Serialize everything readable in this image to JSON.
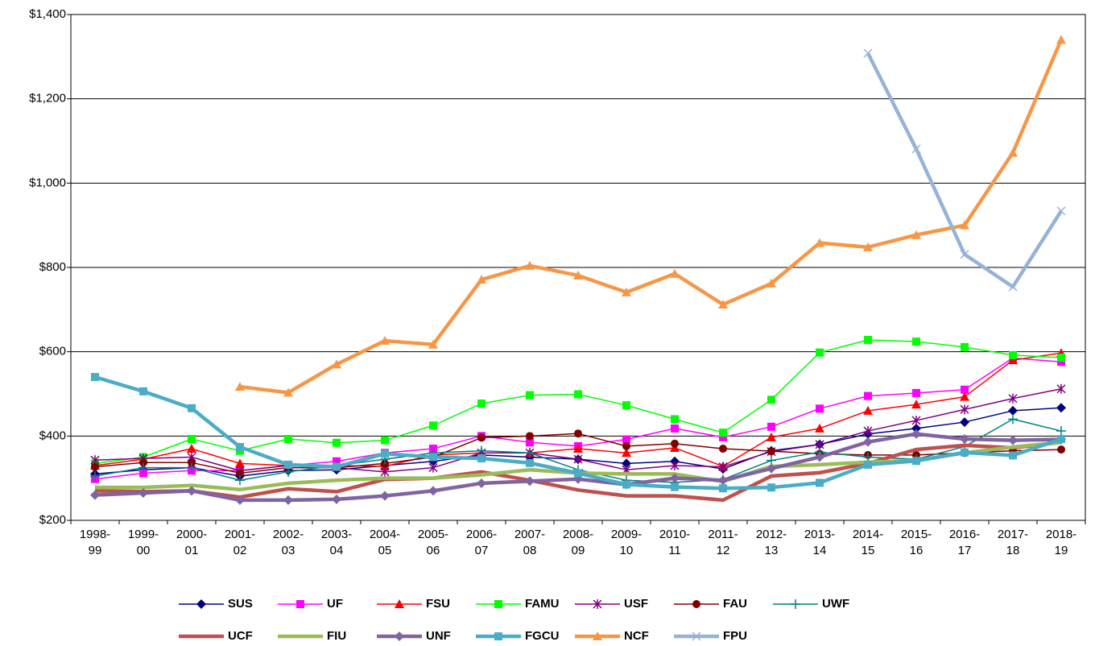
{
  "chart_data": {
    "type": "line",
    "categories": [
      "1998-99",
      "1999-00",
      "2000-01",
      "2001-02",
      "2002-03",
      "2003-04",
      "2004-05",
      "2005-06",
      "2006-07",
      "2007-08",
      "2008-09",
      "2009-10",
      "2010-11",
      "2011-12",
      "2012-13",
      "2013-14",
      "2014-15",
      "2015-16",
      "2016-17",
      "2017-18",
      "2018-19"
    ],
    "ylim": [
      200,
      1400
    ],
    "yticks": [
      {
        "value": 200,
        "label": "$200"
      },
      {
        "value": 400,
        "label": "$400"
      },
      {
        "value": 600,
        "label": "$600"
      },
      {
        "value": 800,
        "label": "$800"
      },
      {
        "value": 1000,
        "label": "$1,000"
      },
      {
        "value": 1200,
        "label": "$1,200"
      },
      {
        "value": 1400,
        "label": "$1,400"
      }
    ],
    "grid": true,
    "legend": "bottom",
    "series": [
      {
        "name": "SUS",
        "color": "#000080",
        "marker": "diamond",
        "width": 1.5,
        "values": [
          310,
          320,
          325,
          305,
          318,
          320,
          330,
          340,
          355,
          350,
          345,
          335,
          340,
          322,
          365,
          380,
          405,
          418,
          433,
          460,
          467
        ]
      },
      {
        "name": "UF",
        "color": "#ff00ff",
        "marker": "square",
        "width": 1.5,
        "values": [
          298,
          312,
          318,
          318,
          330,
          340,
          360,
          370,
          400,
          385,
          376,
          392,
          418,
          397,
          422,
          465,
          495,
          502,
          510,
          585,
          576
        ]
      },
      {
        "name": "FSU",
        "color": "#ff0000",
        "marker": "triangle",
        "width": 1.5,
        "values": [
          330,
          345,
          370,
          335,
          330,
          330,
          328,
          355,
          360,
          360,
          370,
          360,
          372,
          328,
          397,
          418,
          460,
          475,
          493,
          580,
          597
        ]
      },
      {
        "name": "FAMU",
        "color": "#00ff00",
        "marker": "square",
        "width": 1.5,
        "values": [
          335,
          350,
          393,
          365,
          393,
          384,
          390,
          425,
          477,
          497,
          499,
          473,
          440,
          408,
          486,
          598,
          628,
          624,
          611,
          592,
          586
        ]
      },
      {
        "name": "USF",
        "color": "#800080",
        "marker": "star",
        "width": 1.5,
        "values": [
          343,
          347,
          350,
          318,
          330,
          325,
          315,
          325,
          360,
          360,
          345,
          320,
          330,
          327,
          363,
          380,
          412,
          437,
          463,
          489,
          512
        ]
      },
      {
        "name": "FAU",
        "color": "#800000",
        "marker": "circle",
        "width": 1.5,
        "values": [
          327,
          337,
          337,
          312,
          325,
          325,
          335,
          350,
          396,
          400,
          406,
          376,
          382,
          370,
          364,
          358,
          355,
          355,
          360,
          365,
          368
        ]
      },
      {
        "name": "UWF",
        "color": "#008080",
        "marker": "plus",
        "width": 1.5,
        "values": [
          305,
          325,
          325,
          295,
          315,
          330,
          345,
          360,
          365,
          360,
          320,
          295,
          290,
          297,
          342,
          362,
          350,
          345,
          375,
          440,
          412
        ]
      },
      {
        "name": "UCF",
        "color": "#c0504d",
        "marker": "none",
        "width": 4.5,
        "values": [
          270,
          268,
          270,
          255,
          275,
          268,
          297,
          300,
          315,
          295,
          272,
          258,
          258,
          248,
          305,
          313,
          335,
          368,
          378,
          372,
          385
        ]
      },
      {
        "name": "FIU",
        "color": "#9bbb59",
        "marker": "none",
        "width": 4.5,
        "values": [
          278,
          278,
          283,
          273,
          288,
          295,
          300,
          300,
          308,
          320,
          312,
          310,
          310,
          292,
          328,
          332,
          338,
          342,
          360,
          374,
          385
        ]
      },
      {
        "name": "UNF",
        "color": "#8064a2",
        "marker": "diamond",
        "width": 4.5,
        "values": [
          260,
          265,
          270,
          248,
          248,
          250,
          258,
          270,
          288,
          293,
          298,
          285,
          300,
          295,
          323,
          350,
          386,
          405,
          393,
          390,
          392
        ]
      },
      {
        "name": "FGCU",
        "color": "#4bacc6",
        "marker": "square",
        "width": 4.5,
        "values": [
          540,
          506,
          466,
          374,
          332,
          327,
          358,
          350,
          347,
          336,
          312,
          285,
          279,
          276,
          278,
          289,
          332,
          341,
          361,
          354,
          393
        ]
      },
      {
        "name": "NCF",
        "color": "#f79646",
        "marker": "triangle",
        "width": 4.5,
        "values": [
          null,
          null,
          null,
          517,
          503,
          570,
          626,
          617,
          771,
          804,
          781,
          741,
          785,
          712,
          762,
          858,
          848,
          877,
          900,
          1072,
          1340
        ]
      },
      {
        "name": "FPU",
        "color": "#95b3d7",
        "marker": "x",
        "width": 4.5,
        "values": [
          null,
          null,
          null,
          null,
          null,
          null,
          null,
          null,
          null,
          null,
          null,
          null,
          null,
          null,
          null,
          null,
          1308,
          1081,
          831,
          754,
          934
        ]
      }
    ]
  }
}
